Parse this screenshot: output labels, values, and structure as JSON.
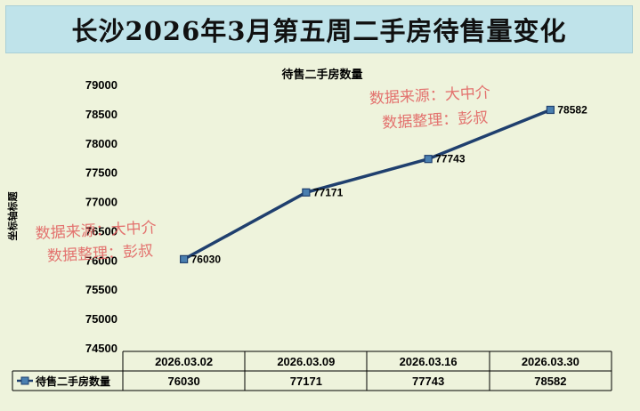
{
  "page_title": "长沙2026年3月第五周二手房待售量变化",
  "watermark": {
    "line1": "数据来源：大中介",
    "line2": "数据整理：彭叔"
  },
  "chart_data": {
    "type": "line",
    "title": "待售二手房数量",
    "xlabel": "",
    "ylabel": "坐标轴标题",
    "categories": [
      "2026.03.02",
      "2026.03.09",
      "2026.03.16",
      "2026.03.30"
    ],
    "series": [
      {
        "name": "待售二手房数量",
        "values": [
          76030,
          77171,
          77743,
          78582
        ]
      }
    ],
    "ylim": [
      74500,
      79000
    ],
    "yticks": [
      74500,
      75000,
      75500,
      76000,
      76500,
      77000,
      77500,
      78000,
      78500,
      79000
    ],
    "grid": false,
    "data_table": true,
    "colors": {
      "line": "#1f3f6e",
      "marker": "#4a7fb0"
    }
  }
}
